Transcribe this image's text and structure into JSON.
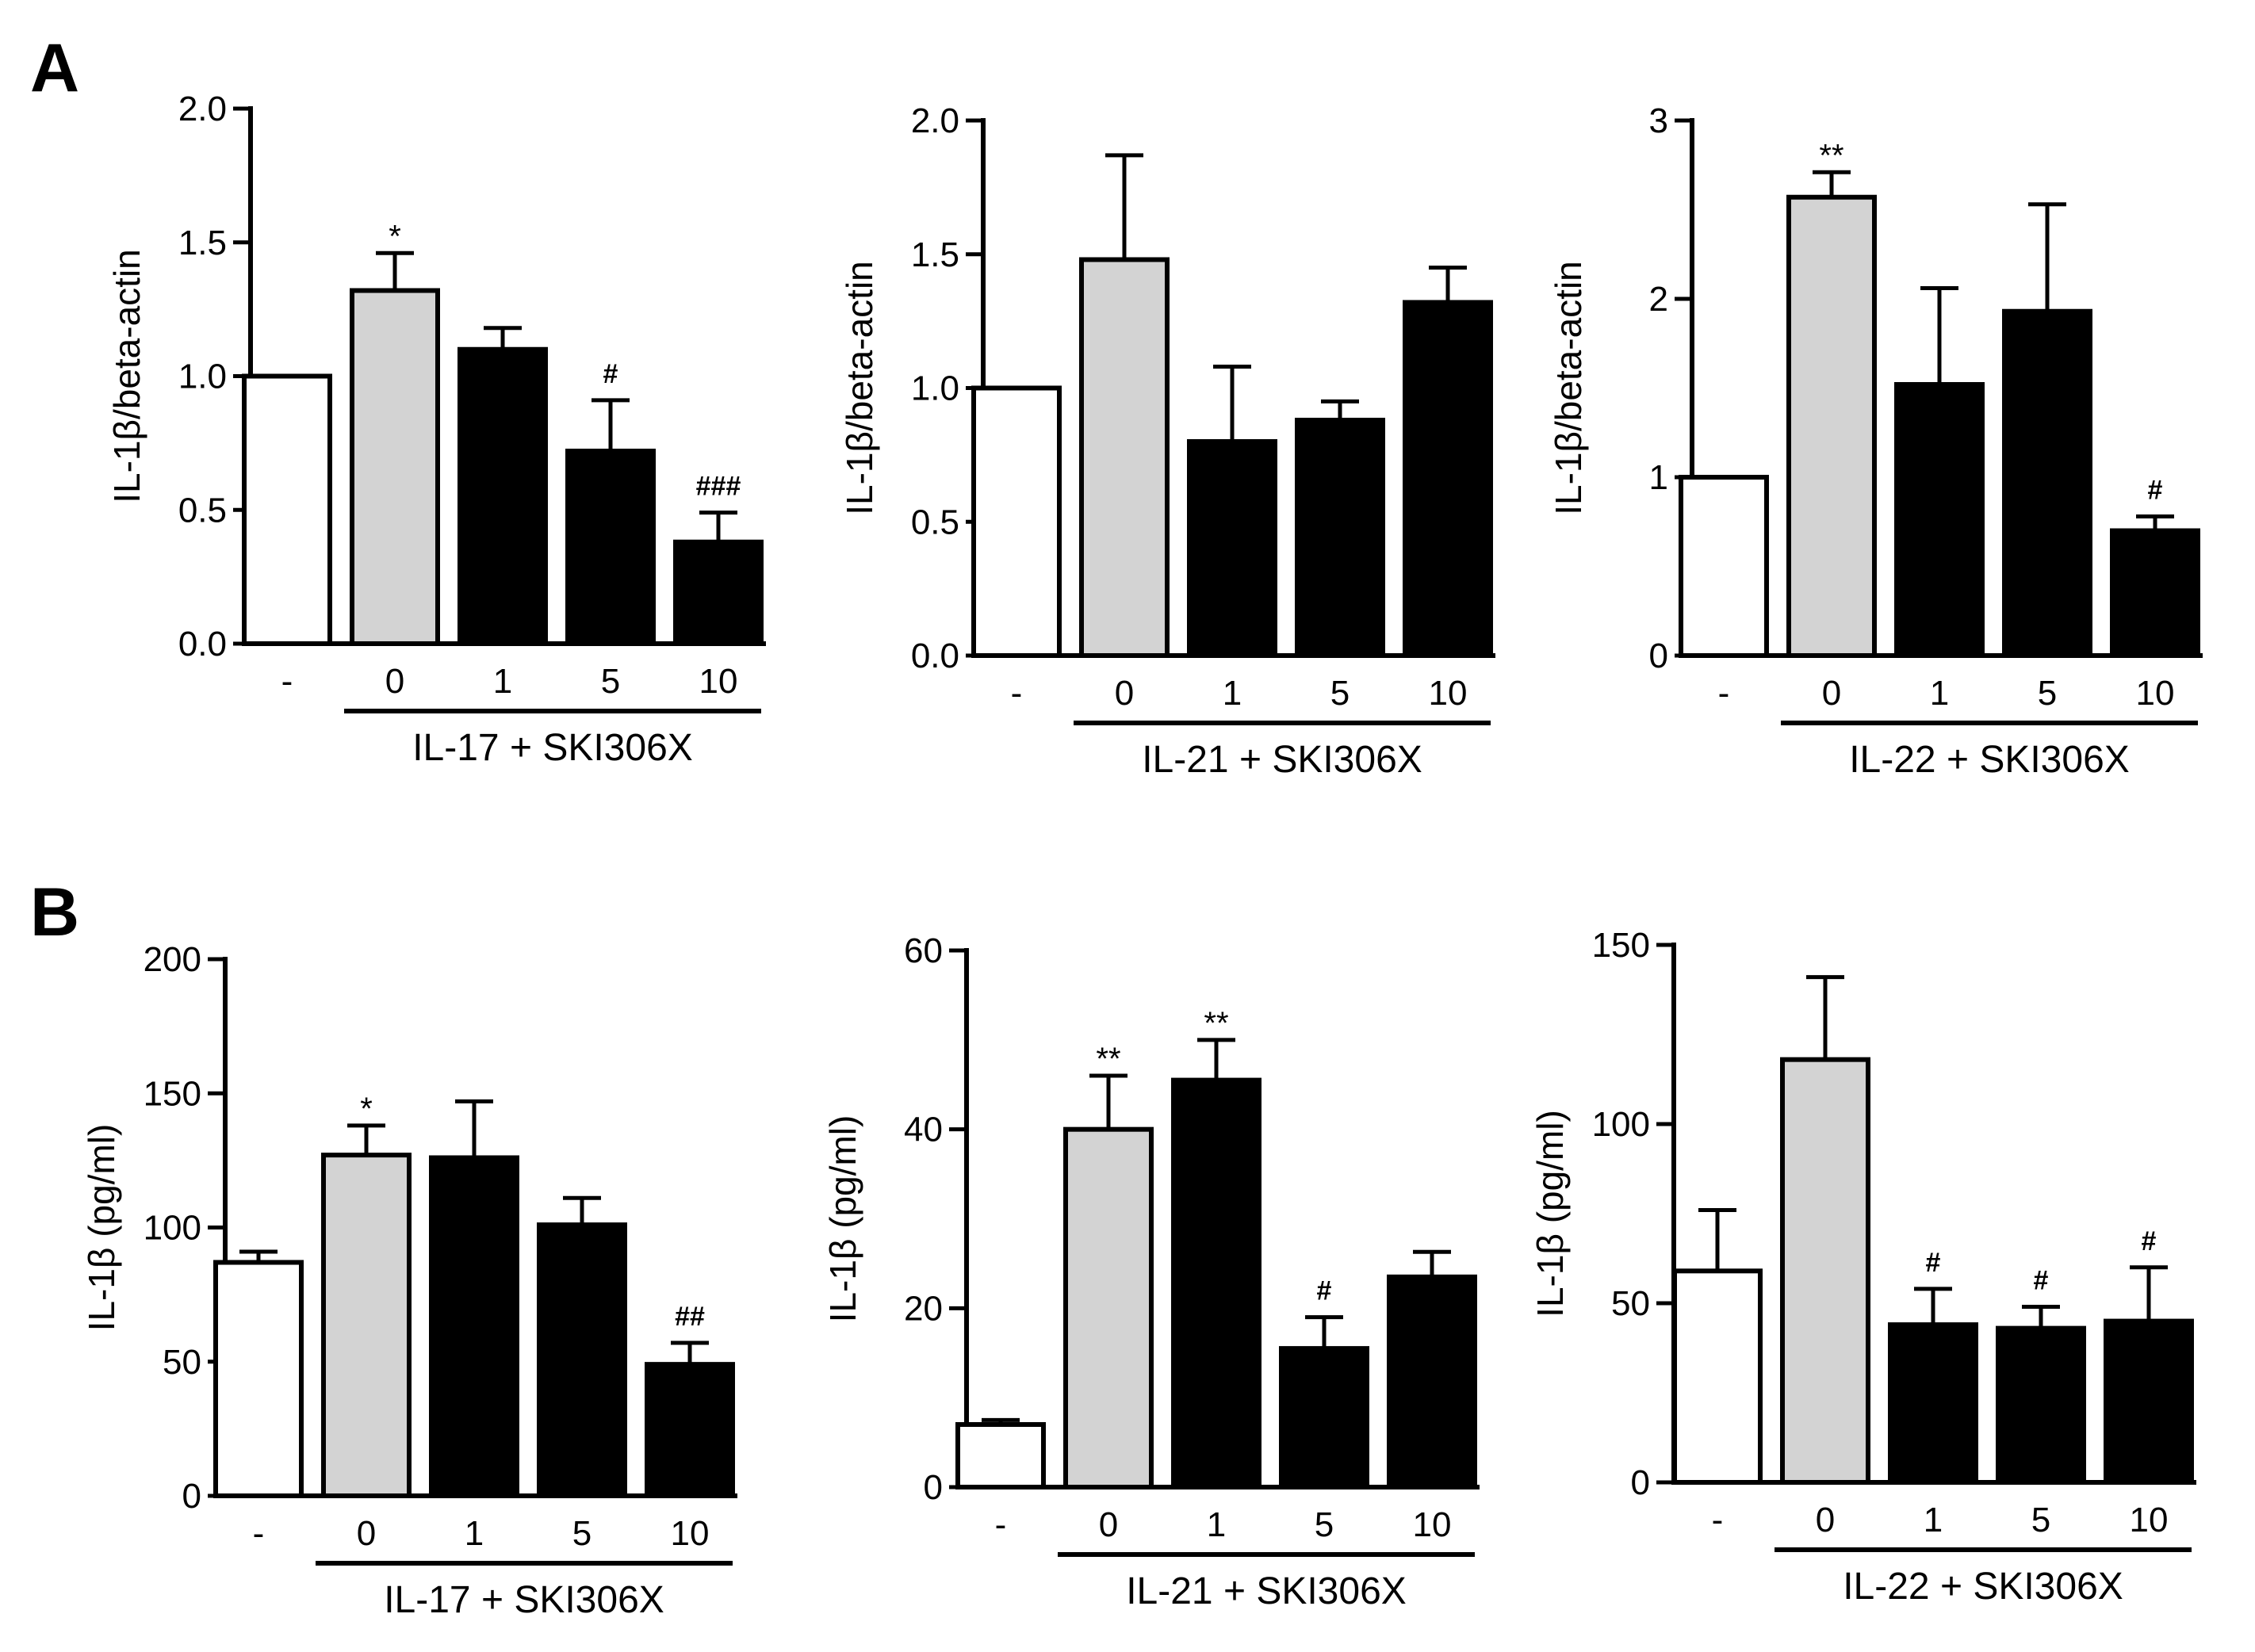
{
  "panels": [
    {
      "letter": "A"
    },
    {
      "letter": "B"
    }
  ],
  "colors": {
    "control": "#ffffff",
    "stimulated": "#d3d3d3",
    "treated": "#000000",
    "stroke": "#000000"
  },
  "chart_data": [
    {
      "type": "bar",
      "panel": "A",
      "title": "",
      "ylabel": "IL-1β/beta-actin",
      "ylim": [
        0,
        2.0
      ],
      "yticks": [
        0,
        0.5,
        1.0,
        1.5,
        2.0
      ],
      "ytick_labels": [
        "0.0",
        "0.5",
        "1.0",
        "1.5",
        "2.0"
      ],
      "categories": [
        "-",
        "0",
        "1",
        "5",
        "10"
      ],
      "group_label": "IL-17 + SKI306X",
      "values": [
        1.0,
        1.32,
        1.1,
        0.72,
        0.38
      ],
      "errors": [
        0.0,
        0.14,
        0.08,
        0.19,
        0.11
      ],
      "fills": [
        "control",
        "stimulated",
        "treated",
        "treated",
        "treated"
      ],
      "annotations": [
        "",
        "*",
        "",
        "#",
        "###"
      ]
    },
    {
      "type": "bar",
      "panel": "A",
      "title": "",
      "ylabel": "IL-1β/beta-actin",
      "ylim": [
        0,
        2.0
      ],
      "yticks": [
        0,
        0.5,
        1.0,
        1.5,
        2.0
      ],
      "ytick_labels": [
        "0.0",
        "0.5",
        "1.0",
        "1.5",
        "2.0"
      ],
      "categories": [
        "-",
        "0",
        "1",
        "5",
        "10"
      ],
      "group_label": "IL-21 + SKI306X",
      "values": [
        1.0,
        1.48,
        0.8,
        0.88,
        1.32
      ],
      "errors": [
        0.0,
        0.39,
        0.28,
        0.07,
        0.13
      ],
      "fills": [
        "control",
        "stimulated",
        "treated",
        "treated",
        "treated"
      ],
      "annotations": [
        "",
        "",
        "",
        "",
        ""
      ]
    },
    {
      "type": "bar",
      "panel": "A",
      "title": "",
      "ylabel": "IL-1β/beta-actin",
      "ylim": [
        0,
        3
      ],
      "yticks": [
        0,
        1,
        2,
        3
      ],
      "ytick_labels": [
        "0",
        "1",
        "2",
        "3"
      ],
      "categories": [
        "-",
        "0",
        "1",
        "5",
        "10"
      ],
      "group_label": "IL-22 + SKI306X",
      "values": [
        1.0,
        2.57,
        1.52,
        1.93,
        0.7
      ],
      "errors": [
        0.0,
        0.14,
        0.54,
        0.6,
        0.08
      ],
      "fills": [
        "control",
        "stimulated",
        "treated",
        "treated",
        "treated"
      ],
      "annotations": [
        "",
        "**",
        "",
        "",
        "#"
      ]
    },
    {
      "type": "bar",
      "panel": "B",
      "title": "",
      "ylabel": "IL-1β (pg/ml)",
      "ylim": [
        0,
        200
      ],
      "yticks": [
        0,
        50,
        100,
        150,
        200
      ],
      "ytick_labels": [
        "0",
        "50",
        "100",
        "150",
        "200"
      ],
      "categories": [
        "-",
        "0",
        "1",
        "5",
        "10"
      ],
      "group_label": "IL-17 + SKI306X",
      "values": [
        87,
        127,
        126,
        101,
        49
      ],
      "errors": [
        4,
        11,
        21,
        10,
        8
      ],
      "fills": [
        "control",
        "stimulated",
        "treated",
        "treated",
        "treated"
      ],
      "annotations": [
        "",
        "*",
        "",
        "",
        "##"
      ]
    },
    {
      "type": "bar",
      "panel": "B",
      "title": "",
      "ylabel": "IL-1β (pg/ml)",
      "ylim": [
        0,
        60
      ],
      "yticks": [
        0,
        20,
        40,
        60
      ],
      "ytick_labels": [
        "0",
        "20",
        "40",
        "60"
      ],
      "categories": [
        "-",
        "0",
        "1",
        "5",
        "10"
      ],
      "group_label": "IL-21 + SKI306X",
      "values": [
        7,
        40,
        45.5,
        15.5,
        23.5
      ],
      "errors": [
        0.5,
        6,
        4.5,
        3.5,
        2.8
      ],
      "fills": [
        "control",
        "stimulated",
        "treated",
        "treated",
        "treated"
      ],
      "annotations": [
        "",
        "**",
        "**",
        "#",
        ""
      ]
    },
    {
      "type": "bar",
      "panel": "B",
      "title": "",
      "ylabel": "IL-1β (pg/ml)",
      "ylim": [
        0,
        150
      ],
      "yticks": [
        0,
        50,
        100,
        150
      ],
      "ytick_labels": [
        "0",
        "50",
        "100",
        "150"
      ],
      "categories": [
        "-",
        "0",
        "1",
        "5",
        "10"
      ],
      "group_label": "IL-22 + SKI306X",
      "values": [
        59,
        118,
        44,
        43,
        45
      ],
      "errors": [
        17,
        23,
        10,
        6,
        15
      ],
      "fills": [
        "control",
        "stimulated",
        "treated",
        "treated",
        "treated"
      ],
      "annotations": [
        "",
        "",
        "#",
        "#",
        "#"
      ]
    }
  ]
}
